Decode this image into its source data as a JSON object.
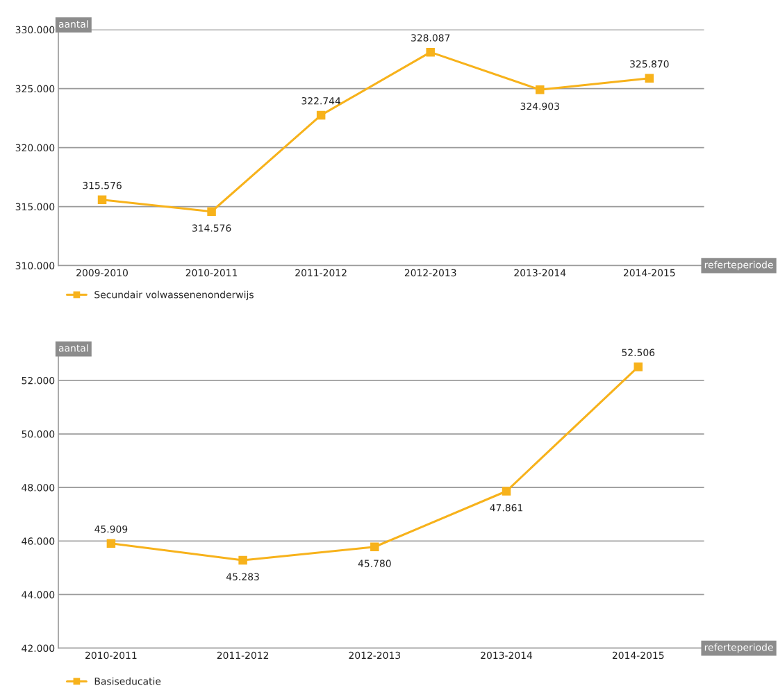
{
  "chart_data": [
    {
      "type": "line",
      "ylabel": "aantal",
      "xlabel": "referteperiode",
      "categories": [
        "2009-2010",
        "2010-2011",
        "2011-2012",
        "2012-2013",
        "2013-2014",
        "2014-2015"
      ],
      "series": [
        {
          "name": "Secundair volwassenenonderwijs",
          "color": "#f7b21b",
          "values": [
            315576,
            314576,
            322744,
            328087,
            324903,
            325870
          ],
          "value_labels": [
            "315.576",
            "314.576",
            "322.744",
            "328.087",
            "324.903",
            "325.870"
          ]
        }
      ],
      "ylim": [
        310000,
        330000
      ],
      "yticks": [
        {
          "value": 310000,
          "label": "310.000"
        },
        {
          "value": 315000,
          "label": "315.000"
        },
        {
          "value": 320000,
          "label": "320.000"
        },
        {
          "value": 325000,
          "label": "325.000"
        },
        {
          "value": 330000,
          "label": "330.000"
        }
      ],
      "grid": "y",
      "legend": "bottom",
      "marker": "square",
      "line_style": "solid"
    },
    {
      "type": "line",
      "ylabel": "aantal",
      "xlabel": "referteperiode",
      "categories": [
        "2010-2011",
        "2011-2012",
        "2012-2013",
        "2013-2014",
        "2014-2015"
      ],
      "series": [
        {
          "name": "Basiseducatie",
          "color": "#f7b21b",
          "values": [
            45909,
            45283,
            45780,
            47861,
            52506
          ],
          "value_labels": [
            "45.909",
            "45.283",
            "45.780",
            "47.861",
            "52.506"
          ]
        }
      ],
      "ylim": [
        42000,
        53000
      ],
      "yticks": [
        {
          "value": 42000,
          "label": "42.000"
        },
        {
          "value": 44000,
          "label": "44.000"
        },
        {
          "value": 46000,
          "label": "46.000"
        },
        {
          "value": 48000,
          "label": "48.000"
        },
        {
          "value": 50000,
          "label": "50.000"
        },
        {
          "value": 52000,
          "label": "52.000"
        }
      ],
      "grid": "y",
      "legend": "bottom",
      "marker": "square",
      "line_style": "solid"
    }
  ]
}
